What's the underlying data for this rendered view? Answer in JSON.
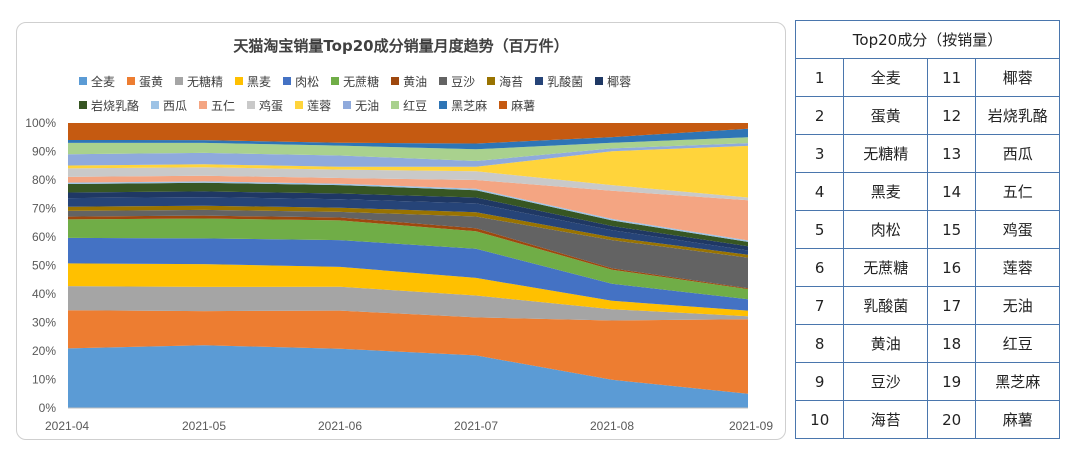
{
  "chart_data": {
    "type": "area",
    "stacked": "percent",
    "title": "天猫淘宝销量Top20成分销量月度趋势（百万件）",
    "x": [
      "2021-04",
      "2021-05",
      "2021-06",
      "2021-07",
      "2021-08",
      "2021-09"
    ],
    "y_ticks": [
      "0%",
      "10%",
      "20%",
      "30%",
      "40%",
      "50%",
      "60%",
      "70%",
      "80%",
      "90%",
      "100%"
    ],
    "ylim": [
      0,
      100
    ],
    "grid": false,
    "legend_position": "top",
    "series": [
      {
        "name": "全麦",
        "color": "#5B9BD5",
        "values": [
          21,
          22,
          21,
          18,
          10,
          5
        ]
      },
      {
        "name": "蛋黄",
        "color": "#ED7D31",
        "values": [
          13.5,
          12,
          13.5,
          13,
          21,
          26
        ]
      },
      {
        "name": "无糖精",
        "color": "#A5A5A5",
        "values": [
          8.5,
          8.5,
          8.5,
          7.5,
          4,
          1
        ]
      },
      {
        "name": "黑麦",
        "color": "#FFC000",
        "values": [
          8,
          8,
          7,
          6,
          3,
          2
        ]
      },
      {
        "name": "肉松",
        "color": "#4472C4",
        "values": [
          9,
          9,
          9.5,
          10,
          6,
          4
        ]
      },
      {
        "name": "无蔗糖",
        "color": "#70AD47",
        "values": [
          6.5,
          7,
          7,
          6,
          5,
          3.5
        ]
      },
      {
        "name": "黄油",
        "color": "#9E480E",
        "values": [
          1,
          1,
          1,
          1,
          0.5,
          0.3
        ]
      },
      {
        "name": "豆沙",
        "color": "#636363",
        "values": [
          2,
          2,
          2,
          4,
          10,
          10.7
        ]
      },
      {
        "name": "海苔",
        "color": "#997300",
        "values": [
          1.5,
          1.5,
          1.5,
          1.5,
          1,
          1
        ]
      },
      {
        "name": "乳酸菌",
        "color": "#264478",
        "values": [
          3,
          3,
          3,
          3,
          2.5,
          1.5
        ]
      },
      {
        "name": "椰蓉",
        "color": "#1F3864",
        "values": [
          2,
          2,
          2,
          2,
          1.5,
          1.5
        ]
      },
      {
        "name": "岩烧乳酪",
        "color": "#375623",
        "values": [
          3,
          3,
          3,
          2.5,
          2,
          1.5
        ]
      },
      {
        "name": "西瓜",
        "color": "#9DC3E6",
        "values": [
          0.5,
          0.5,
          0.5,
          0.5,
          0.5,
          0.5
        ]
      },
      {
        "name": "五仁",
        "color": "#F4A582",
        "values": [
          2,
          2,
          2,
          3,
          10,
          14
        ]
      },
      {
        "name": "鸡蛋",
        "color": "#C9C9C9",
        "values": [
          3,
          3,
          3,
          3,
          2,
          1
        ]
      },
      {
        "name": "莲蓉",
        "color": "#FFD43B",
        "values": [
          1,
          1,
          1,
          1.5,
          12,
          18
        ]
      },
      {
        "name": "无油",
        "color": "#8FAADC",
        "values": [
          4,
          4,
          4,
          2,
          1,
          1
        ]
      },
      {
        "name": "红豆",
        "color": "#A9D18E",
        "values": [
          4,
          3.5,
          3.5,
          4,
          2,
          2
        ]
      },
      {
        "name": "黑芝麻",
        "color": "#2E75B6",
        "values": [
          1,
          1,
          1,
          2,
          2,
          3
        ]
      },
      {
        "name": "麻薯",
        "color": "#C55A11",
        "values": [
          6,
          6,
          7,
          7,
          5,
          2
        ]
      }
    ]
  },
  "table": {
    "header": "Top20成分（按销量）",
    "rows": [
      [
        "1",
        "全麦",
        "11",
        "椰蓉"
      ],
      [
        "2",
        "蛋黄",
        "12",
        "岩烧乳酪"
      ],
      [
        "3",
        "无糖精",
        "13",
        "西瓜"
      ],
      [
        "4",
        "黑麦",
        "14",
        "五仁"
      ],
      [
        "5",
        "肉松",
        "15",
        "鸡蛋"
      ],
      [
        "6",
        "无蔗糖",
        "16",
        "莲蓉"
      ],
      [
        "7",
        "乳酸菌",
        "17",
        "无油"
      ],
      [
        "8",
        "黄油",
        "18",
        "红豆"
      ],
      [
        "9",
        "豆沙",
        "19",
        "黑芝麻"
      ],
      [
        "10",
        "海苔",
        "20",
        "麻薯"
      ]
    ]
  }
}
